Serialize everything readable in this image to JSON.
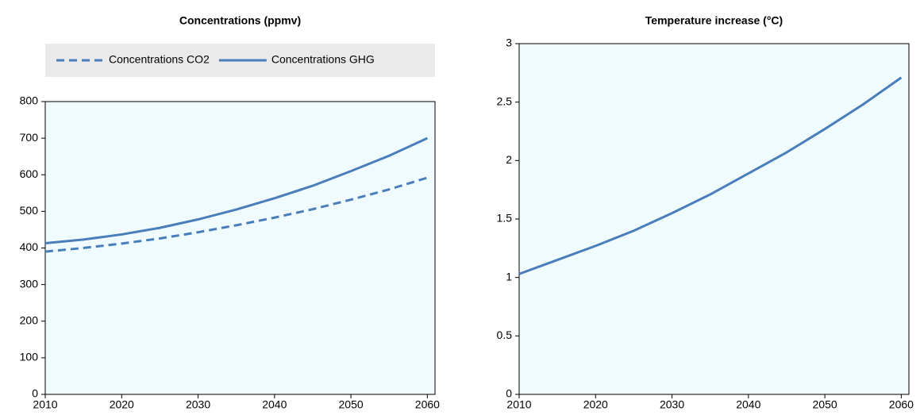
{
  "chart_data": [
    {
      "type": "line",
      "title": "Concentrations (ppmv)",
      "x": [
        2010,
        2015,
        2020,
        2025,
        2030,
        2035,
        2040,
        2045,
        2050,
        2055,
        2060
      ],
      "series": [
        {
          "name": "Concentrations CO2",
          "color": "#4a7ebb",
          "line_style": "dashed",
          "values": [
            390,
            400,
            412,
            426,
            443,
            462,
            483,
            506,
            532,
            560,
            592
          ]
        },
        {
          "name": "Concentrations GHG",
          "color": "#4a7ebb",
          "line_style": "solid",
          "values": [
            413,
            423,
            437,
            455,
            478,
            505,
            536,
            570,
            610,
            652,
            700
          ]
        }
      ],
      "xlim": [
        2010,
        2061
      ],
      "xticks": [
        2010,
        2020,
        2030,
        2040,
        2050,
        2060
      ],
      "ylim": [
        0,
        800
      ],
      "yticks": [
        0,
        100,
        200,
        300,
        400,
        500,
        600,
        700,
        800
      ],
      "legend": "top",
      "plot_background": "#f0fbfe"
    },
    {
      "type": "line",
      "title": "Temperature increase (°C)",
      "x": [
        2010,
        2015,
        2020,
        2025,
        2030,
        2035,
        2040,
        2045,
        2050,
        2055,
        2060
      ],
      "values": [
        1.03,
        1.15,
        1.27,
        1.4,
        1.55,
        1.71,
        1.89,
        2.07,
        2.27,
        2.48,
        2.71
      ],
      "color": "#4a7ebb",
      "xlim": [
        2010,
        2061
      ],
      "xticks": [
        2010,
        2020,
        2030,
        2040,
        2050,
        2060
      ],
      "ylim": [
        0,
        3
      ],
      "yticks": [
        0,
        0.5,
        1,
        1.5,
        2,
        2.5,
        3
      ],
      "plot_background": "#f0fbfe"
    }
  ]
}
